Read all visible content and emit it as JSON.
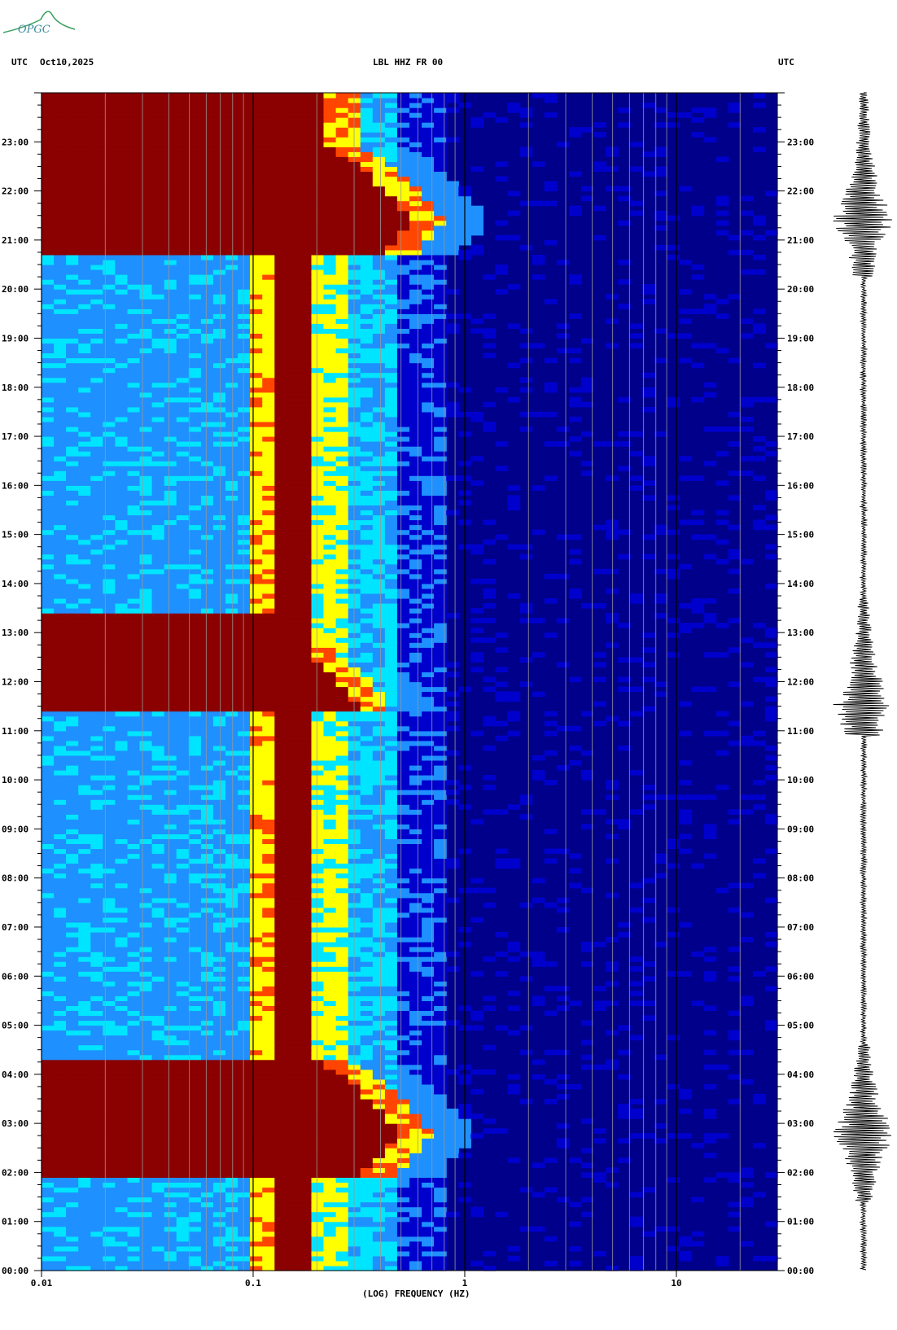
{
  "logo": {
    "text": "OPGC"
  },
  "header": {
    "left_tz": "UTC",
    "date": "Oct10,2025",
    "station": "LBL HHZ FR 00",
    "right_tz": "UTC"
  },
  "colors": {
    "background": "#00008b",
    "low": "#0000cd",
    "mid_low": "#1e90ff",
    "mid": "#00e5ff",
    "mid_high": "#ffff00",
    "high": "#ff4500",
    "max": "#8b0000"
  },
  "chart_data": {
    "type": "heatmap",
    "title": "LBL HHZ FR 00",
    "xlabel": "(LOG) FREQUENCY (HZ)",
    "ylabel": "",
    "x_scale": "log",
    "xlim": [
      0.01,
      30
    ],
    "ylim_hours": [
      0,
      24
    ],
    "x_ticks": [
      {
        "value": 0.01,
        "label": "0.01"
      },
      {
        "value": 0.1,
        "label": "0.1"
      },
      {
        "value": 1,
        "label": "1"
      },
      {
        "value": 10,
        "label": "10"
      }
    ],
    "y_ticks": [
      "00:00",
      "01:00",
      "02:00",
      "03:00",
      "04:00",
      "05:00",
      "06:00",
      "07:00",
      "08:00",
      "09:00",
      "10:00",
      "11:00",
      "12:00",
      "13:00",
      "14:00",
      "15:00",
      "16:00",
      "17:00",
      "18:00",
      "19:00",
      "20:00",
      "21:00",
      "22:00",
      "23:00"
    ],
    "events": [
      {
        "start_hour": 1.9,
        "end_hour": 4.3,
        "peak_hour": 2.8,
        "peak_freq": 0.7
      },
      {
        "start_hour": 11.4,
        "end_hour": 13.4,
        "peak_hour": 11.5,
        "peak_freq": 0.45
      },
      {
        "start_hour": 20.75,
        "end_hour": 24,
        "peak_hour": 21.4,
        "peak_freq": 0.8
      }
    ],
    "microseism_band_hz": [
      0.12,
      0.2
    ],
    "side_trace": "seismogram"
  }
}
